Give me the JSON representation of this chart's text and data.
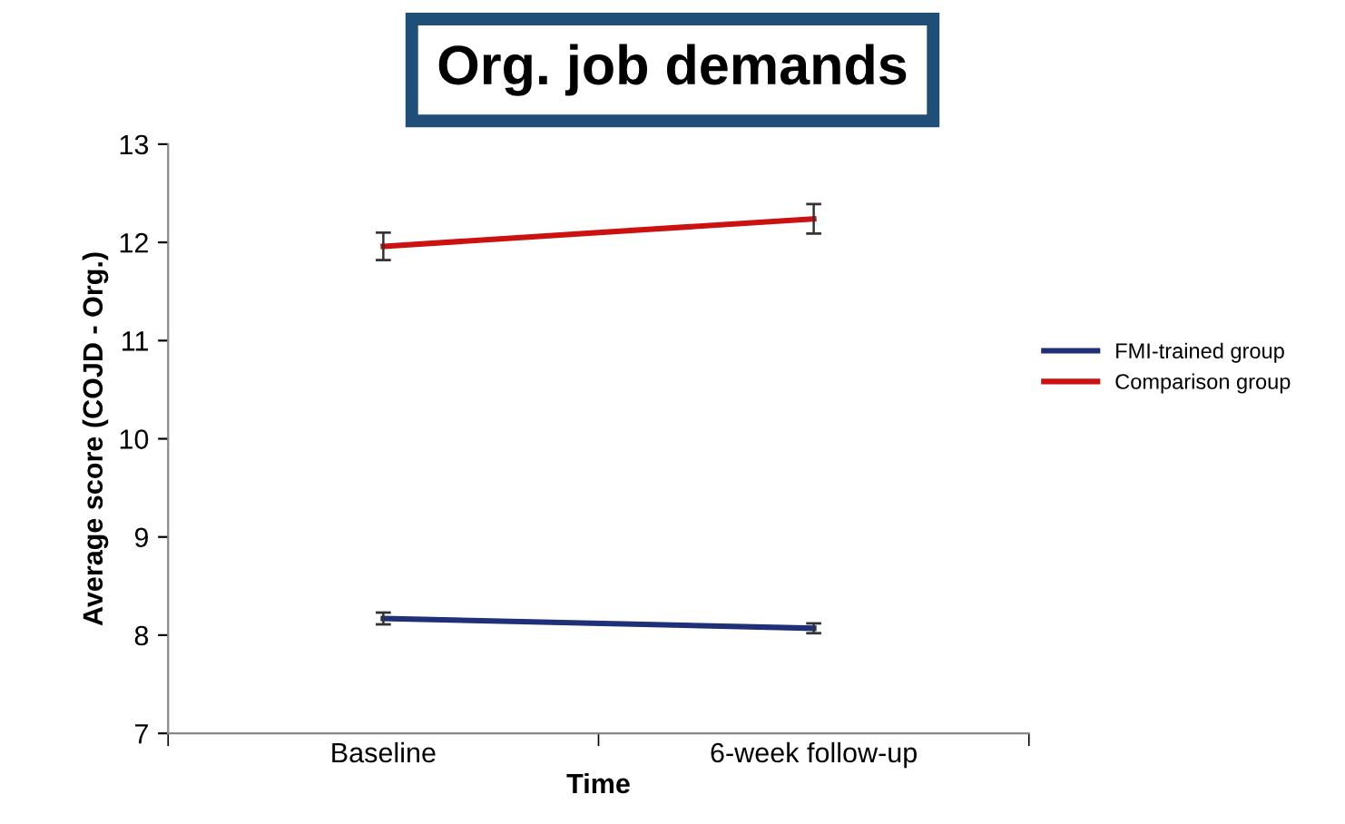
{
  "chart_data": {
    "type": "line",
    "title": "Org. job demands",
    "xlabel": "Time",
    "ylabel": "Average score (COJD - Org.)",
    "categories": [
      "Baseline",
      "6-week follow-up"
    ],
    "series": [
      {
        "name": "FMI-trained group",
        "color": "#1f2f78",
        "values": [
          8.17,
          8.07
        ],
        "errors": [
          0.06,
          0.05
        ]
      },
      {
        "name": "Comparison group",
        "color": "#cc1111",
        "values": [
          11.96,
          12.24
        ],
        "errors": [
          0.14,
          0.15
        ]
      }
    ],
    "ylim": [
      7,
      13
    ],
    "yticks": [
      7,
      8,
      9,
      10,
      11,
      12,
      13
    ],
    "grid": false,
    "legend": "right",
    "marker": "none",
    "line_style": "solid"
  }
}
